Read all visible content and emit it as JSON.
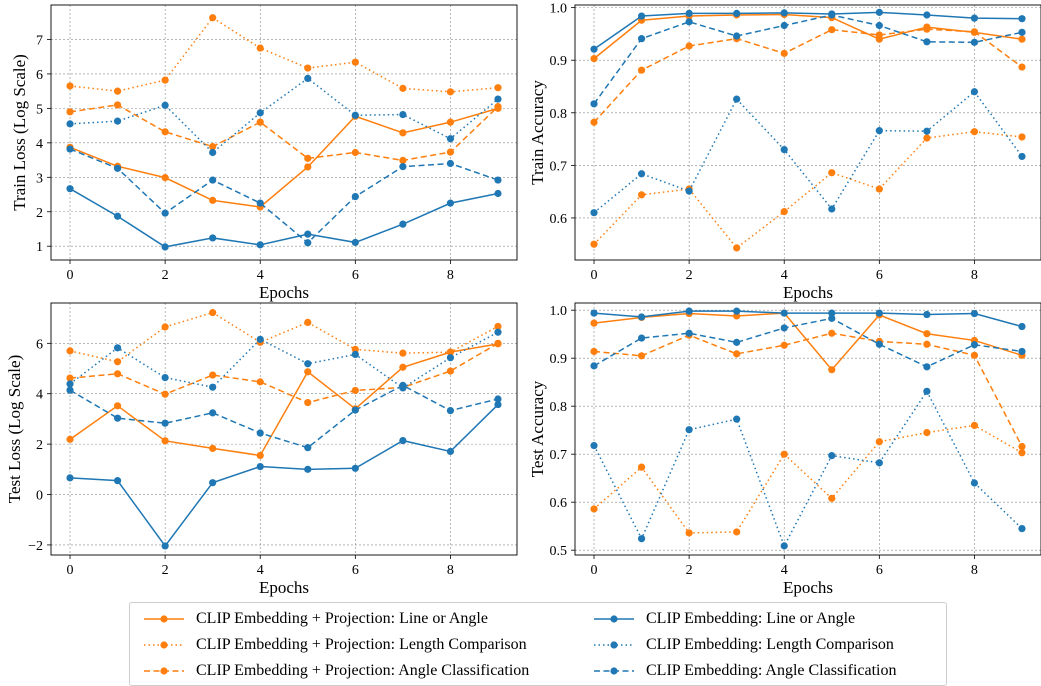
{
  "colors": {
    "orange": "#ff7f0e",
    "blue": "#1f77b4",
    "grid": "#888888"
  },
  "chart_data": [
    {
      "type": "line",
      "ylabel": "Train Loss (Log Scale)",
      "xlabel": "Epochs",
      "xlim": [
        -0.4,
        9.4
      ],
      "ylim": [
        0.6,
        8.0
      ],
      "xticks": [
        0,
        2,
        4,
        6,
        8
      ],
      "yticks": [
        1,
        2,
        3,
        4,
        5,
        6,
        7
      ],
      "grid": true,
      "x": [
        0,
        1,
        2,
        3,
        4,
        5,
        6,
        7,
        8,
        9
      ],
      "series": [
        {
          "name": "CLIP Embedding + Projection: Line or Angle",
          "color": "orange",
          "style": "solid",
          "values": [
            3.87,
            3.32,
            2.99,
            2.33,
            2.14,
            3.3,
            4.77,
            4.29,
            4.6,
            5.0
          ]
        },
        {
          "name": "CLIP Embedding + Projection: Length Comparison",
          "color": "orange",
          "style": "dotted",
          "values": [
            5.65,
            5.5,
            5.82,
            7.63,
            6.75,
            6.17,
            6.34,
            5.58,
            5.48,
            5.6
          ]
        },
        {
          "name": "CLIP Embedding + Projection: Angle Classification",
          "color": "orange",
          "style": "dashed",
          "values": [
            4.9,
            5.1,
            4.32,
            3.89,
            4.6,
            3.55,
            3.72,
            3.49,
            3.73,
            5.05
          ]
        },
        {
          "name": "CLIP Embedding: Line or Angle",
          "color": "blue",
          "style": "solid",
          "values": [
            2.67,
            1.87,
            0.98,
            1.24,
            1.04,
            1.35,
            1.11,
            1.64,
            2.25,
            2.53
          ]
        },
        {
          "name": "CLIP Embedding: Length Comparison",
          "color": "blue",
          "style": "dotted",
          "values": [
            4.55,
            4.63,
            5.09,
            3.72,
            4.87,
            5.87,
            4.8,
            4.82,
            4.12,
            5.27
          ]
        },
        {
          "name": "CLIP Embedding: Angle Classification",
          "color": "blue",
          "style": "dashed",
          "values": [
            3.82,
            3.26,
            1.96,
            2.92,
            2.25,
            1.1,
            2.44,
            3.31,
            3.4,
            2.92
          ]
        }
      ]
    },
    {
      "type": "line",
      "ylabel": "Train Accuracy",
      "xlabel": "Epochs",
      "xlim": [
        -0.4,
        9.4
      ],
      "ylim": [
        0.52,
        1.005
      ],
      "xticks": [
        0,
        2,
        4,
        6,
        8
      ],
      "yticks": [
        0.6,
        0.7,
        0.8,
        0.9,
        1.0
      ],
      "ytick_labels": [
        "0.6",
        "0.7",
        "0.8",
        "0.9",
        "1.0"
      ],
      "grid": true,
      "x": [
        0,
        1,
        2,
        3,
        4,
        5,
        6,
        7,
        8,
        9
      ],
      "series": [
        {
          "name": "CLIP Embedding + Projection: Line or Angle",
          "color": "orange",
          "style": "solid",
          "values": [
            0.903,
            0.976,
            0.984,
            0.986,
            0.987,
            0.981,
            0.94,
            0.963,
            0.953,
            0.94
          ]
        },
        {
          "name": "CLIP Embedding + Projection: Length Comparison",
          "color": "orange",
          "style": "dotted",
          "values": [
            0.55,
            0.644,
            0.655,
            0.543,
            0.612,
            0.686,
            0.655,
            0.752,
            0.764,
            0.754
          ]
        },
        {
          "name": "CLIP Embedding + Projection: Angle Classification",
          "color": "orange",
          "style": "dashed",
          "values": [
            0.782,
            0.881,
            0.927,
            0.941,
            0.913,
            0.958,
            0.948,
            0.959,
            0.954,
            0.887
          ]
        },
        {
          "name": "CLIP Embedding: Line or Angle",
          "color": "blue",
          "style": "solid",
          "values": [
            0.921,
            0.984,
            0.989,
            0.989,
            0.99,
            0.988,
            0.991,
            0.986,
            0.98,
            0.979
          ]
        },
        {
          "name": "CLIP Embedding: Length Comparison",
          "color": "blue",
          "style": "dotted",
          "values": [
            0.61,
            0.684,
            0.651,
            0.826,
            0.73,
            0.617,
            0.766,
            0.765,
            0.84,
            0.717
          ]
        },
        {
          "name": "CLIP Embedding: Angle Classification",
          "color": "blue",
          "style": "dashed",
          "values": [
            0.817,
            0.941,
            0.973,
            0.946,
            0.966,
            0.986,
            0.966,
            0.935,
            0.934,
            0.953
          ]
        }
      ]
    },
    {
      "type": "line",
      "ylabel": "Test Loss (Log Scale)",
      "xlabel": "Epochs",
      "xlim": [
        -0.4,
        9.4
      ],
      "ylim": [
        -2.4,
        7.6
      ],
      "xticks": [
        0,
        2,
        4,
        6,
        8
      ],
      "yticks": [
        -2,
        0,
        2,
        4,
        6
      ],
      "ytick_labels": [
        "−2",
        "0",
        "2",
        "4",
        "6"
      ],
      "grid": true,
      "x": [
        0,
        1,
        2,
        3,
        4,
        5,
        6,
        7,
        8,
        9
      ],
      "series": [
        {
          "name": "CLIP Embedding + Projection: Line or Angle",
          "color": "orange",
          "style": "solid",
          "values": [
            2.19,
            3.52,
            2.13,
            1.83,
            1.55,
            4.87,
            3.4,
            5.05,
            5.65,
            5.98
          ]
        },
        {
          "name": "CLIP Embedding + Projection: Length Comparison",
          "color": "orange",
          "style": "dotted",
          "values": [
            5.7,
            5.27,
            6.65,
            7.22,
            6.04,
            6.83,
            5.76,
            5.61,
            5.65,
            6.67
          ]
        },
        {
          "name": "CLIP Embedding + Projection: Angle Classification",
          "color": "orange",
          "style": "dashed",
          "values": [
            4.62,
            4.79,
            3.98,
            4.74,
            4.47,
            3.65,
            4.13,
            4.25,
            4.9,
            6.0
          ]
        },
        {
          "name": "CLIP Embedding: Line or Angle",
          "color": "blue",
          "style": "solid",
          "values": [
            0.66,
            0.55,
            -2.04,
            0.47,
            1.11,
            1.0,
            1.04,
            2.14,
            1.71,
            3.57
          ]
        },
        {
          "name": "CLIP Embedding: Length Comparison",
          "color": "blue",
          "style": "dotted",
          "values": [
            4.39,
            5.82,
            4.64,
            4.26,
            6.16,
            5.19,
            5.56,
            4.23,
            5.43,
            6.44
          ]
        },
        {
          "name": "CLIP Embedding: Angle Classification",
          "color": "blue",
          "style": "dashed",
          "values": [
            4.14,
            3.03,
            2.83,
            3.24,
            2.44,
            1.86,
            3.35,
            4.33,
            3.33,
            3.79
          ]
        }
      ]
    },
    {
      "type": "line",
      "ylabel": "Test Accuracy",
      "xlabel": "Epochs",
      "xlim": [
        -0.4,
        9.4
      ],
      "ylim": [
        0.49,
        1.015
      ],
      "xticks": [
        0,
        2,
        4,
        6,
        8
      ],
      "yticks": [
        0.5,
        0.6,
        0.7,
        0.8,
        0.9,
        1.0
      ],
      "ytick_labels": [
        "0.5",
        "0.6",
        "0.7",
        "0.8",
        "0.9",
        "1.0"
      ],
      "grid": true,
      "x": [
        0,
        1,
        2,
        3,
        4,
        5,
        6,
        7,
        8,
        9
      ],
      "series": [
        {
          "name": "CLIP Embedding + Projection: Line or Angle",
          "color": "orange",
          "style": "solid",
          "values": [
            0.973,
            0.985,
            0.993,
            0.988,
            0.994,
            0.876,
            0.99,
            0.951,
            0.937,
            0.906
          ]
        },
        {
          "name": "CLIP Embedding + Projection: Length Comparison",
          "color": "orange",
          "style": "dotted",
          "values": [
            0.586,
            0.673,
            0.536,
            0.538,
            0.7,
            0.608,
            0.726,
            0.745,
            0.76,
            0.703
          ]
        },
        {
          "name": "CLIP Embedding + Projection: Angle Classification",
          "color": "orange",
          "style": "dashed",
          "values": [
            0.914,
            0.905,
            0.948,
            0.909,
            0.927,
            0.952,
            0.935,
            0.929,
            0.906,
            0.716
          ]
        },
        {
          "name": "CLIP Embedding: Line or Angle",
          "color": "blue",
          "style": "solid",
          "values": [
            0.994,
            0.986,
            0.998,
            0.998,
            0.994,
            0.994,
            0.994,
            0.991,
            0.993,
            0.966
          ]
        },
        {
          "name": "CLIP Embedding: Length Comparison",
          "color": "blue",
          "style": "dotted",
          "values": [
            0.718,
            0.524,
            0.751,
            0.773,
            0.509,
            0.697,
            0.682,
            0.831,
            0.64,
            0.545
          ]
        },
        {
          "name": "CLIP Embedding: Angle Classification",
          "color": "blue",
          "style": "dashed",
          "values": [
            0.884,
            0.942,
            0.952,
            0.933,
            0.963,
            0.983,
            0.929,
            0.882,
            0.928,
            0.914
          ]
        }
      ]
    }
  ],
  "legend": {
    "entries": [
      {
        "label": "CLIP Embedding + Projection: Line or Angle",
        "color": "orange",
        "style": "solid"
      },
      {
        "label": "CLIP Embedding + Projection: Length Comparison",
        "color": "orange",
        "style": "dotted"
      },
      {
        "label": "CLIP Embedding + Projection: Angle Classification",
        "color": "orange",
        "style": "dashed"
      },
      {
        "label": "CLIP Embedding: Line or Angle",
        "color": "blue",
        "style": "solid"
      },
      {
        "label": "CLIP Embedding: Length Comparison",
        "color": "blue",
        "style": "dotted"
      },
      {
        "label": "CLIP Embedding: Angle Classification",
        "color": "blue",
        "style": "dashed"
      }
    ]
  }
}
